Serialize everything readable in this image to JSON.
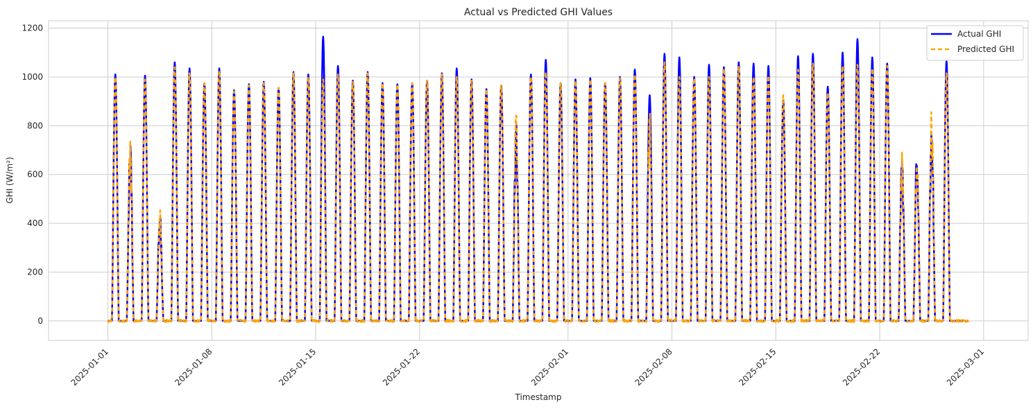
{
  "chart_data": {
    "type": "line",
    "title": "Actual vs Predicted GHI Values",
    "xlabel": "Timestamp",
    "ylabel": "GHI (W/m²)",
    "x_range": [
      "2025-01-01",
      "2025-02-28"
    ],
    "xlim": [
      "2024-12-28",
      "2025-03-04"
    ],
    "ylim": [
      -80,
      1230
    ],
    "x_ticks": [
      "2025-01-01",
      "2025-01-08",
      "2025-01-15",
      "2025-01-22",
      "2025-02-01",
      "2025-02-08",
      "2025-02-15",
      "2025-02-22",
      "2025-03-01"
    ],
    "y_ticks": [
      0,
      200,
      400,
      600,
      800,
      1000,
      1200
    ],
    "grid": true,
    "legend_position": "top-right",
    "daily_peak_ghi": {
      "dates": [
        "2025-01-01",
        "2025-01-02",
        "2025-01-03",
        "2025-01-04",
        "2025-01-05",
        "2025-01-06",
        "2025-01-07",
        "2025-01-08",
        "2025-01-09",
        "2025-01-10",
        "2025-01-11",
        "2025-01-12",
        "2025-01-13",
        "2025-01-14",
        "2025-01-15",
        "2025-01-16",
        "2025-01-17",
        "2025-01-18",
        "2025-01-19",
        "2025-01-20",
        "2025-01-21",
        "2025-01-22",
        "2025-01-23",
        "2025-01-24",
        "2025-01-25",
        "2025-01-26",
        "2025-01-27",
        "2025-01-28",
        "2025-01-29",
        "2025-01-30",
        "2025-01-31",
        "2025-02-01",
        "2025-02-02",
        "2025-02-03",
        "2025-02-04",
        "2025-02-05",
        "2025-02-06",
        "2025-02-07",
        "2025-02-08",
        "2025-02-09",
        "2025-02-10",
        "2025-02-11",
        "2025-02-12",
        "2025-02-13",
        "2025-02-14",
        "2025-02-15",
        "2025-02-16",
        "2025-02-17",
        "2025-02-18",
        "2025-02-19",
        "2025-02-20",
        "2025-02-21",
        "2025-02-22",
        "2025-02-23",
        "2025-02-24",
        "2025-02-25",
        "2025-02-26",
        "2025-02-27"
      ],
      "actual": [
        1010,
        780,
        1005,
        460,
        1060,
        1035,
        975,
        1035,
        945,
        970,
        980,
        955,
        1020,
        1010,
        1165,
        1045,
        985,
        1020,
        975,
        970,
        975,
        985,
        1015,
        1035,
        990,
        950,
        965,
        830,
        1010,
        1070,
        975,
        990,
        995,
        975,
        1000,
        1030,
        925,
        1095,
        1080,
        1000,
        1050,
        1040,
        1060,
        1055,
        1045,
        905,
        1085,
        1095,
        960,
        1100,
        1155,
        1080,
        1055,
        705,
        730,
        850,
        1065,
        0
      ],
      "predicted": [
        1000,
        800,
        990,
        460,
        1040,
        1015,
        975,
        1025,
        940,
        965,
        975,
        955,
        1015,
        1000,
        990,
        1010,
        980,
        1015,
        975,
        970,
        975,
        985,
        1010,
        1000,
        985,
        950,
        965,
        865,
        1000,
        1020,
        975,
        985,
        990,
        975,
        995,
        1010,
        880,
        1060,
        1000,
        995,
        1000,
        1035,
        1045,
        1000,
        1005,
        925,
        1030,
        1055,
        935,
        1045,
        1050,
        1035,
        1045,
        700,
        730,
        875,
        1015,
        0
      ]
    },
    "series": [
      {
        "name": "Actual GHI",
        "color": "#0000ff",
        "style": "solid"
      },
      {
        "name": "Predicted GHI",
        "color": "#ffa500",
        "style": "dashed"
      }
    ]
  }
}
